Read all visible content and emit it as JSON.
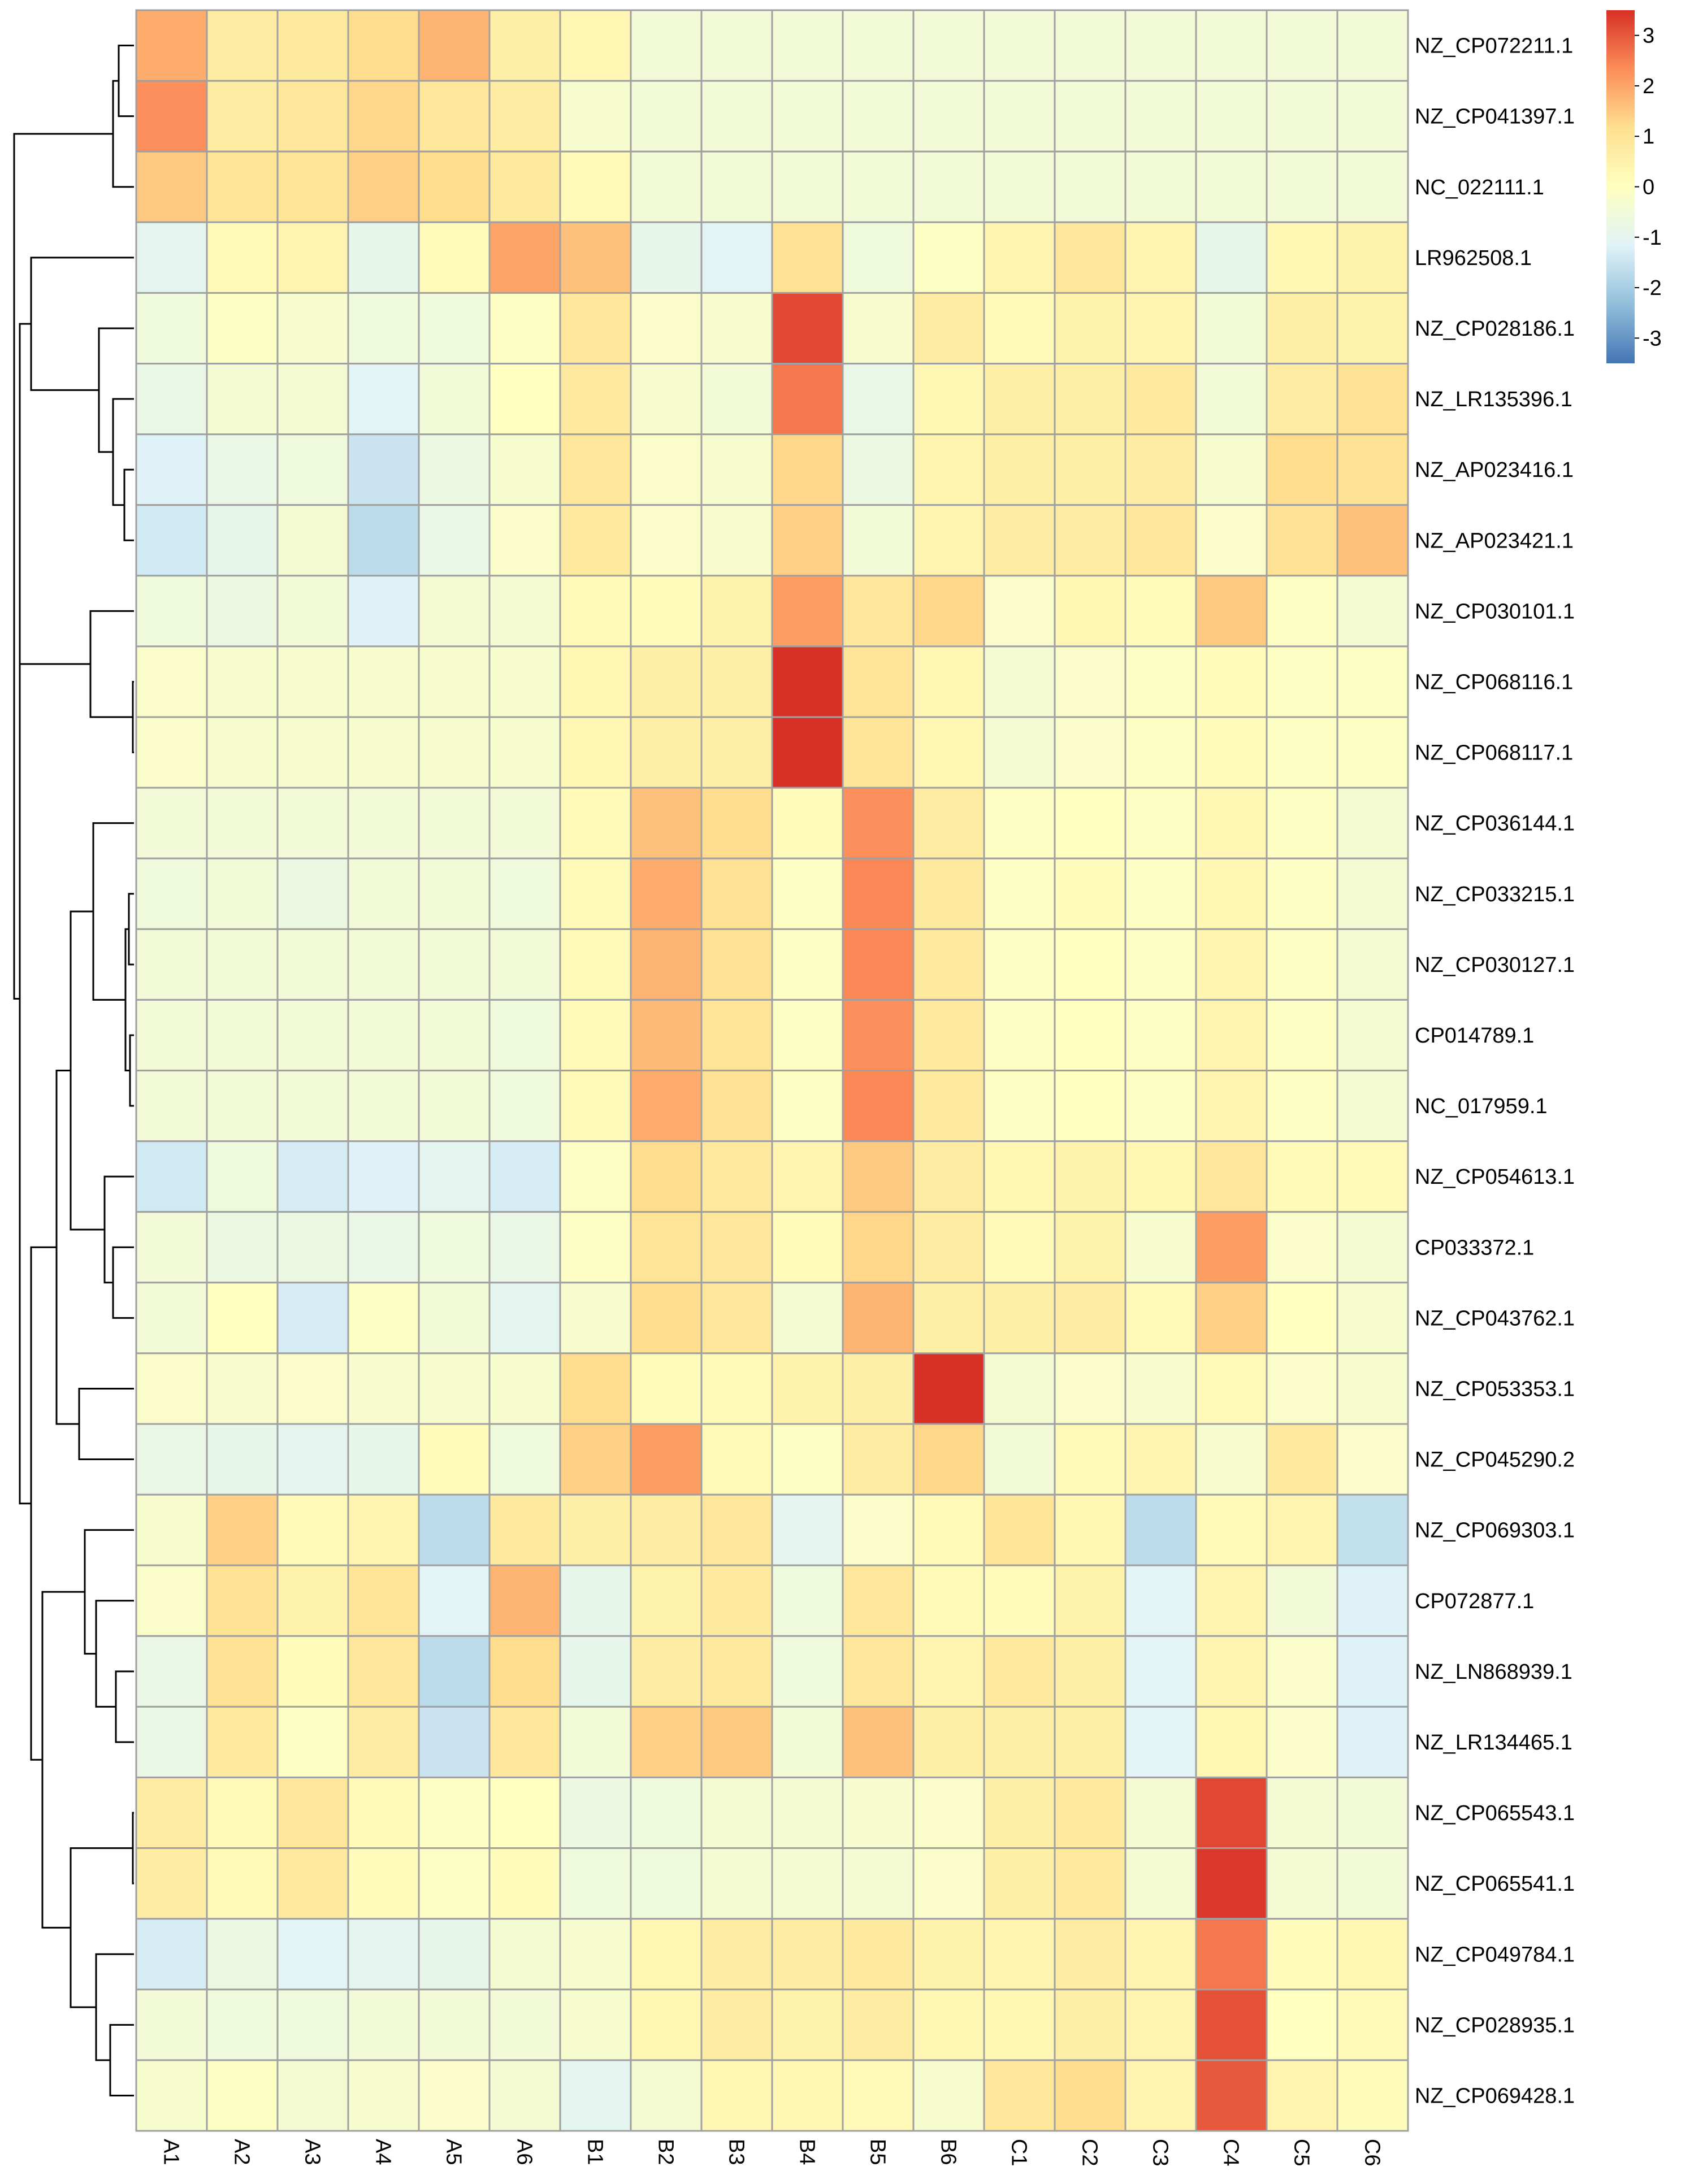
{
  "chart_data": {
    "type": "heatmap",
    "title": "",
    "xlabel": "",
    "ylabel": "",
    "columns": [
      "A1",
      "A2",
      "A3",
      "A4",
      "A5",
      "A6",
      "B1",
      "B2",
      "B3",
      "B4",
      "B5",
      "B6",
      "C1",
      "C2",
      "C3",
      "C4",
      "C5",
      "C6"
    ],
    "rows": [
      "NZ_CP072211.1",
      "NZ_CP041397.1",
      "NC_022111.1",
      "LR962508.1",
      "NZ_CP028186.1",
      "NZ_LR135396.1",
      "NZ_AP023416.1",
      "NZ_AP023421.1",
      "NZ_CP030101.1",
      "NZ_CP068116.1",
      "NZ_CP068117.1",
      "NZ_CP036144.1",
      "NZ_CP033215.1",
      "NZ_CP030127.1",
      "CP014789.1",
      "NC_017959.1",
      "NZ_CP054613.1",
      "CP033372.1",
      "NZ_CP043762.1",
      "NZ_CP053353.1",
      "NZ_CP045290.2",
      "NZ_CP069303.1",
      "CP072877.1",
      "NZ_LN868939.1",
      "NZ_LR134465.1",
      "NZ_CP065543.1",
      "NZ_CP065541.1",
      "NZ_CP049784.1",
      "NZ_CP028935.1",
      "NZ_CP069428.1"
    ],
    "values": [
      [
        1.9,
        0.7,
        0.8,
        1.2,
        1.8,
        0.6,
        0.3,
        -0.5,
        -0.5,
        -0.5,
        -0.5,
        -0.5,
        -0.5,
        -0.5,
        -0.5,
        -0.5,
        -0.5,
        -0.5
      ],
      [
        2.3,
        0.7,
        0.9,
        1.3,
        0.9,
        0.7,
        -0.3,
        -0.5,
        -0.5,
        -0.5,
        -0.5,
        -0.5,
        -0.5,
        -0.5,
        -0.5,
        -0.5,
        -0.5,
        -0.5
      ],
      [
        1.5,
        1.0,
        1.0,
        1.4,
        1.2,
        0.8,
        0.2,
        -0.5,
        -0.5,
        -0.5,
        -0.5,
        -0.5,
        -0.5,
        -0.5,
        -0.5,
        -0.5,
        -0.5,
        -0.5
      ],
      [
        -1.0,
        0.2,
        0.4,
        -0.9,
        0.1,
        2.0,
        1.6,
        -0.9,
        -1.1,
        1.1,
        -0.6,
        -0.1,
        0.4,
        0.9,
        0.4,
        -0.9,
        0.3,
        0.5
      ],
      [
        -0.6,
        -0.1,
        -0.3,
        -0.6,
        -0.6,
        -0.1,
        0.9,
        -0.2,
        -0.3,
        3.2,
        -0.3,
        0.7,
        0.2,
        0.5,
        0.4,
        -0.5,
        0.6,
        0.5
      ],
      [
        -0.8,
        -0.4,
        -0.4,
        -1.1,
        -0.5,
        0.0,
        0.8,
        -0.3,
        -0.5,
        2.6,
        -0.8,
        0.3,
        0.6,
        0.6,
        0.8,
        -0.5,
        0.7,
        1.1
      ],
      [
        -1.2,
        -0.8,
        -0.6,
        -1.5,
        -0.7,
        -0.3,
        0.9,
        -0.2,
        -0.3,
        1.3,
        -0.7,
        0.4,
        0.6,
        0.6,
        0.7,
        -0.3,
        1.2,
        1.1
      ],
      [
        -1.4,
        -0.9,
        -0.4,
        -1.7,
        -0.8,
        -0.2,
        0.8,
        -0.2,
        -0.3,
        1.4,
        -0.5,
        0.4,
        0.7,
        0.7,
        0.9,
        -0.2,
        1.1,
        1.6
      ],
      [
        -0.6,
        -0.7,
        -0.5,
        -1.2,
        -0.4,
        -0.4,
        0.2,
        0.1,
        0.5,
        2.1,
        0.9,
        1.3,
        -0.2,
        0.3,
        0.1,
        1.5,
        -0.1,
        -0.4
      ],
      [
        -0.2,
        -0.3,
        -0.3,
        -0.3,
        -0.3,
        -0.3,
        0.3,
        0.6,
        0.6,
        3.5,
        1.0,
        0.3,
        -0.4,
        -0.2,
        -0.1,
        0.1,
        -0.1,
        -0.1
      ],
      [
        -0.2,
        -0.3,
        -0.3,
        -0.3,
        -0.3,
        -0.3,
        0.3,
        0.6,
        0.6,
        3.5,
        1.0,
        0.3,
        -0.4,
        -0.2,
        -0.1,
        0.1,
        -0.1,
        -0.1
      ],
      [
        -0.5,
        -0.5,
        -0.5,
        -0.5,
        -0.5,
        -0.5,
        0.2,
        1.6,
        1.2,
        0.1,
        2.3,
        0.7,
        -0.1,
        0.0,
        -0.1,
        0.3,
        -0.1,
        -0.4
      ],
      [
        -0.6,
        -0.5,
        -0.7,
        -0.5,
        -0.5,
        -0.6,
        0.2,
        1.9,
        1.1,
        -0.1,
        2.4,
        0.8,
        -0.1,
        0.1,
        -0.1,
        0.3,
        -0.1,
        -0.4
      ],
      [
        -0.5,
        -0.5,
        -0.5,
        -0.5,
        -0.5,
        -0.5,
        0.2,
        1.8,
        1.1,
        -0.1,
        2.4,
        0.8,
        -0.1,
        0.0,
        -0.1,
        0.4,
        -0.1,
        -0.4
      ],
      [
        -0.5,
        -0.5,
        -0.5,
        -0.5,
        -0.5,
        -0.6,
        0.2,
        1.7,
        1.0,
        -0.1,
        2.3,
        0.8,
        -0.1,
        0.0,
        -0.1,
        0.4,
        -0.1,
        -0.4
      ],
      [
        -0.5,
        -0.5,
        -0.5,
        -0.5,
        -0.5,
        -0.6,
        0.2,
        1.9,
        1.1,
        -0.1,
        2.4,
        0.8,
        -0.1,
        0.0,
        -0.1,
        0.4,
        -0.1,
        -0.4
      ],
      [
        -1.4,
        -0.6,
        -1.3,
        -1.2,
        -1.0,
        -1.3,
        -0.1,
        1.2,
        0.8,
        0.4,
        1.5,
        0.7,
        0.3,
        0.5,
        0.3,
        0.9,
        0.2,
        0.2
      ],
      [
        -0.5,
        -0.7,
        -0.7,
        -0.8,
        -0.6,
        -0.8,
        -0.1,
        1.0,
        0.9,
        0.1,
        1.3,
        0.7,
        0.2,
        0.5,
        -0.3,
        2.1,
        -0.2,
        -0.4
      ],
      [
        -0.5,
        0.0,
        -1.3,
        -0.1,
        -0.5,
        -1.0,
        -0.3,
        1.2,
        0.9,
        -0.4,
        1.8,
        0.6,
        0.6,
        0.7,
        0.2,
        1.4,
        0.0,
        -0.3
      ],
      [
        -0.2,
        -0.3,
        -0.2,
        -0.3,
        -0.3,
        -0.3,
        1.2,
        0.1,
        0.2,
        0.5,
        0.6,
        3.5,
        -0.4,
        -0.2,
        -0.3,
        0.2,
        -0.2,
        -0.3
      ],
      [
        -0.8,
        -0.9,
        -1.0,
        -0.9,
        0.1,
        -0.6,
        1.4,
        2.1,
        0.2,
        -0.1,
        0.7,
        1.3,
        -0.5,
        0.2,
        0.4,
        -0.3,
        0.8,
        -0.2
      ],
      [
        -0.3,
        1.4,
        0.2,
        0.4,
        -1.7,
        0.8,
        0.6,
        0.7,
        0.9,
        -1.0,
        -0.2,
        0.2,
        1.0,
        0.3,
        -1.7,
        0.2,
        0.4,
        -1.6
      ],
      [
        -0.2,
        1.1,
        0.5,
        1.0,
        -1.1,
        1.8,
        -0.9,
        0.5,
        0.8,
        -0.6,
        0.9,
        0.2,
        0.1,
        0.5,
        -1.1,
        0.4,
        -0.5,
        -1.2
      ],
      [
        -0.8,
        1.1,
        0.1,
        0.9,
        -1.7,
        1.2,
        -0.9,
        0.7,
        0.8,
        -0.6,
        0.9,
        0.4,
        0.8,
        0.6,
        -1.1,
        0.4,
        -0.2,
        -1.2
      ],
      [
        -0.8,
        0.8,
        -0.1,
        0.7,
        -1.5,
        0.9,
        -0.5,
        1.4,
        1.5,
        -0.5,
        1.6,
        0.6,
        0.6,
        0.6,
        -1.1,
        0.3,
        -0.2,
        -1.2
      ],
      [
        0.7,
        0.2,
        0.9,
        0.2,
        -0.1,
        0.0,
        -0.7,
        -0.6,
        -0.4,
        -0.4,
        -0.3,
        -0.2,
        0.6,
        0.8,
        -0.4,
        3.2,
        -0.4,
        -0.5
      ],
      [
        0.7,
        0.2,
        0.8,
        0.1,
        -0.1,
        0.1,
        -0.6,
        -0.6,
        -0.4,
        -0.4,
        -0.4,
        -0.2,
        0.6,
        0.8,
        -0.4,
        3.4,
        -0.4,
        -0.5
      ],
      [
        -1.3,
        -0.7,
        -1.1,
        -1.0,
        -0.9,
        -0.4,
        -0.3,
        0.3,
        0.7,
        0.7,
        0.8,
        0.5,
        0.4,
        0.7,
        0.4,
        2.6,
        0.1,
        0.3
      ],
      [
        -0.5,
        -0.6,
        -0.6,
        -0.5,
        -0.5,
        -0.5,
        -0.3,
        0.3,
        0.7,
        0.5,
        0.7,
        0.3,
        0.3,
        0.6,
        0.4,
        3.1,
        0.0,
        0.2
      ],
      [
        -0.3,
        -0.1,
        -0.4,
        -0.3,
        -0.2,
        -0.4,
        -1.0,
        -0.4,
        0.3,
        0.3,
        0.2,
        -0.3,
        0.9,
        1.2,
        0.4,
        3.0,
        0.4,
        0.1
      ]
    ],
    "color_scale": {
      "min": -3.5,
      "max": 3.5,
      "stops": [
        "#4575b4",
        "#91bfdb",
        "#e0f3f8",
        "#ffffbf",
        "#fee090",
        "#fc8d59",
        "#d73027"
      ]
    },
    "legend": {
      "ticks": [
        "3",
        "2",
        "1",
        "0",
        "-1",
        "-2",
        "-3"
      ],
      "placement": "top-right"
    },
    "row_dendrogram": true,
    "grid_color": "#a0a0a0"
  }
}
